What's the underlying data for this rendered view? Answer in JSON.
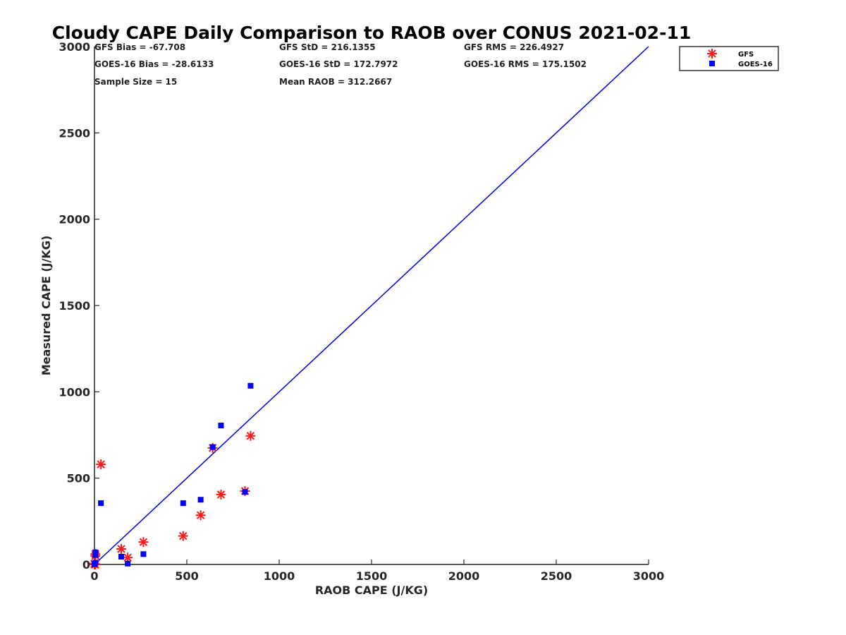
{
  "chart_data": {
    "type": "scatter",
    "title": "Cloudy CAPE Daily Comparison to RAOB over CONUS 2021-02-11",
    "xlabel": "RAOB CAPE (J/KG)",
    "ylabel": "Measured CAPE (J/KG)",
    "xlim": [
      0,
      3000
    ],
    "ylim": [
      0,
      3000
    ],
    "xticks": [
      "0",
      "500",
      "1000",
      "1500",
      "2000",
      "2500",
      "3000"
    ],
    "yticks": [
      "0",
      "500",
      "1000",
      "1500",
      "2000",
      "2500",
      "3000"
    ],
    "grid": false,
    "legend_position": "top-right, outside plot area",
    "reference_line": {
      "type": "one-to-one",
      "color": "#0000dd"
    },
    "stats": [
      [
        "GFS Bias = -67.708",
        "GFS StD = 216.1355",
        "GFS RMS = 226.4927"
      ],
      [
        "GOES-16 Bias = -28.6133",
        "GOES-16 StD = 172.7972",
        "GOES-16 RMS = 175.1502"
      ],
      [
        "Sample Size = 15",
        "Mean RAOB = 312.2667",
        ""
      ]
    ],
    "series": [
      {
        "name": "GFS",
        "marker": "asterisk",
        "color": "#ff1a1a",
        "x": [
          0,
          5,
          5,
          35,
          145,
          180,
          265,
          480,
          575,
          640,
          685,
          815,
          845,
          5,
          0
        ],
        "y": [
          0,
          60,
          50,
          580,
          90,
          40,
          130,
          165,
          285,
          675,
          405,
          425,
          745,
          0,
          5
        ]
      },
      {
        "name": "GOES-16",
        "marker": "square",
        "color": "#0000ff",
        "x": [
          0,
          5,
          5,
          35,
          145,
          180,
          265,
          480,
          575,
          640,
          685,
          815,
          845,
          5,
          0
        ],
        "y": [
          5,
          70,
          55,
          355,
          45,
          5,
          60,
          355,
          375,
          680,
          805,
          420,
          1035,
          10,
          0
        ]
      }
    ]
  }
}
